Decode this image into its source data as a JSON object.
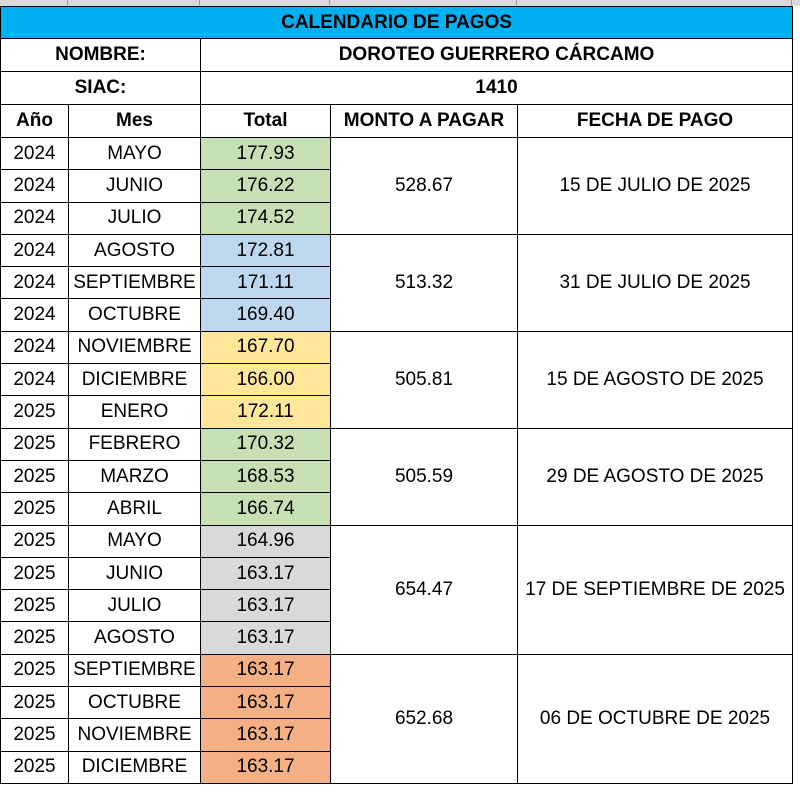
{
  "sheet": {
    "title": "CALENDARIO DE PAGOS",
    "nombre_label": "NOMBRE:",
    "nombre_value": "DOROTEO  GUERRERO  CÁRCAMO",
    "siac_label": "SIAC:",
    "siac_value": "1410",
    "headers": {
      "anio": "Año",
      "mes": "Mes",
      "total": "Total",
      "monto": "MONTO A PAGAR",
      "fecha": "FECHA DE PAGO"
    },
    "colors": {
      "title_bg": "#00b0f0",
      "group1": "#c6e0b4",
      "group2": "#bdd7ee",
      "group3": "#ffe699",
      "group4": "#c6e0b4",
      "group5": "#d9d9d9",
      "group6": "#f4b084"
    },
    "groups": [
      {
        "monto": "528.67",
        "fecha": "15 DE JULIO DE 2025",
        "rows": [
          {
            "anio": "2024",
            "mes": "MAYO",
            "total": "177.93"
          },
          {
            "anio": "2024",
            "mes": "JUNIO",
            "total": "176.22"
          },
          {
            "anio": "2024",
            "mes": "JULIO",
            "total": "174.52"
          }
        ]
      },
      {
        "monto": "513.32",
        "fecha": "31 DE JULIO DE 2025",
        "rows": [
          {
            "anio": "2024",
            "mes": "AGOSTO",
            "total": "172.81"
          },
          {
            "anio": "2024",
            "mes": "SEPTIEMBRE",
            "total": "171.11"
          },
          {
            "anio": "2024",
            "mes": "OCTUBRE",
            "total": "169.40"
          }
        ]
      },
      {
        "monto": "505.81",
        "fecha": "15 DE AGOSTO DE 2025",
        "rows": [
          {
            "anio": "2024",
            "mes": "NOVIEMBRE",
            "total": "167.70"
          },
          {
            "anio": "2024",
            "mes": "DICIEMBRE",
            "total": "166.00"
          },
          {
            "anio": "2025",
            "mes": "ENERO",
            "total": "172.11"
          }
        ]
      },
      {
        "monto": "505.59",
        "fecha": "29 DE AGOSTO DE 2025",
        "rows": [
          {
            "anio": "2025",
            "mes": "FEBRERO",
            "total": "170.32"
          },
          {
            "anio": "2025",
            "mes": "MARZO",
            "total": "168.53"
          },
          {
            "anio": "2025",
            "mes": "ABRIL",
            "total": "166.74"
          }
        ]
      },
      {
        "monto": "654.47",
        "fecha": "17 DE SEPTIEMBRE DE 2025",
        "rows": [
          {
            "anio": "2025",
            "mes": "MAYO",
            "total": "164.96"
          },
          {
            "anio": "2025",
            "mes": "JUNIO",
            "total": "163.17"
          },
          {
            "anio": "2025",
            "mes": "JULIO",
            "total": "163.17"
          },
          {
            "anio": "2025",
            "mes": "AGOSTO",
            "total": "163.17"
          }
        ]
      },
      {
        "monto": "652.68",
        "fecha": "06 DE OCTUBRE DE 2025",
        "rows": [
          {
            "anio": "2025",
            "mes": "SEPTIEMBRE",
            "total": "163.17"
          },
          {
            "anio": "2025",
            "mes": "OCTUBRE",
            "total": "163.17"
          },
          {
            "anio": "2025",
            "mes": "NOVIEMBRE",
            "total": "163.17"
          },
          {
            "anio": "2025",
            "mes": "DICIEMBRE",
            "total": "163.17"
          }
        ]
      }
    ]
  }
}
